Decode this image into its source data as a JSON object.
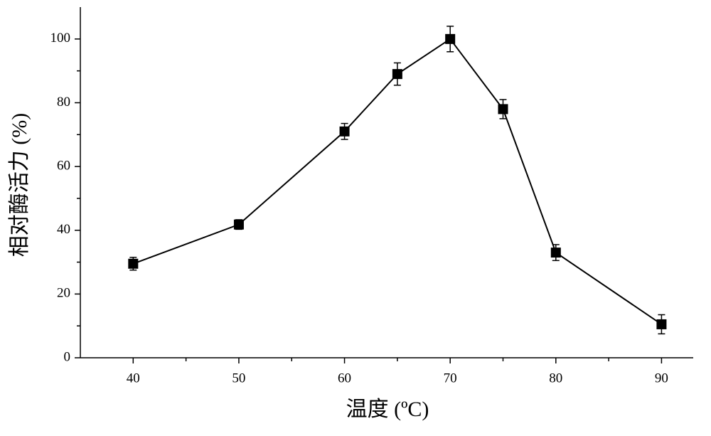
{
  "chart_data": {
    "type": "line",
    "x_label": "温度 (ºC)",
    "y_label": "相对酶活力 (%)",
    "x": [
      40,
      50,
      60,
      65,
      70,
      75,
      80,
      90
    ],
    "series": [
      {
        "color": "#000000",
        "values": [
          29.5,
          41.8,
          71,
          89,
          100,
          78,
          33,
          10.5
        ],
        "errors": [
          2,
          1.5,
          2.5,
          3.5,
          4,
          3,
          2.5,
          3
        ]
      }
    ],
    "xlim": [
      35,
      93
    ],
    "xticks": [
      40,
      50,
      60,
      70,
      80,
      90
    ],
    "x_minor_ticks": [
      45,
      55,
      65,
      75,
      85
    ],
    "ylim": [
      0,
      110
    ],
    "yticks": [
      0,
      20,
      40,
      60,
      80,
      100
    ],
    "y_minor_ticks": [
      10,
      30,
      50,
      70,
      90
    ],
    "marker": "square",
    "grid": false
  }
}
